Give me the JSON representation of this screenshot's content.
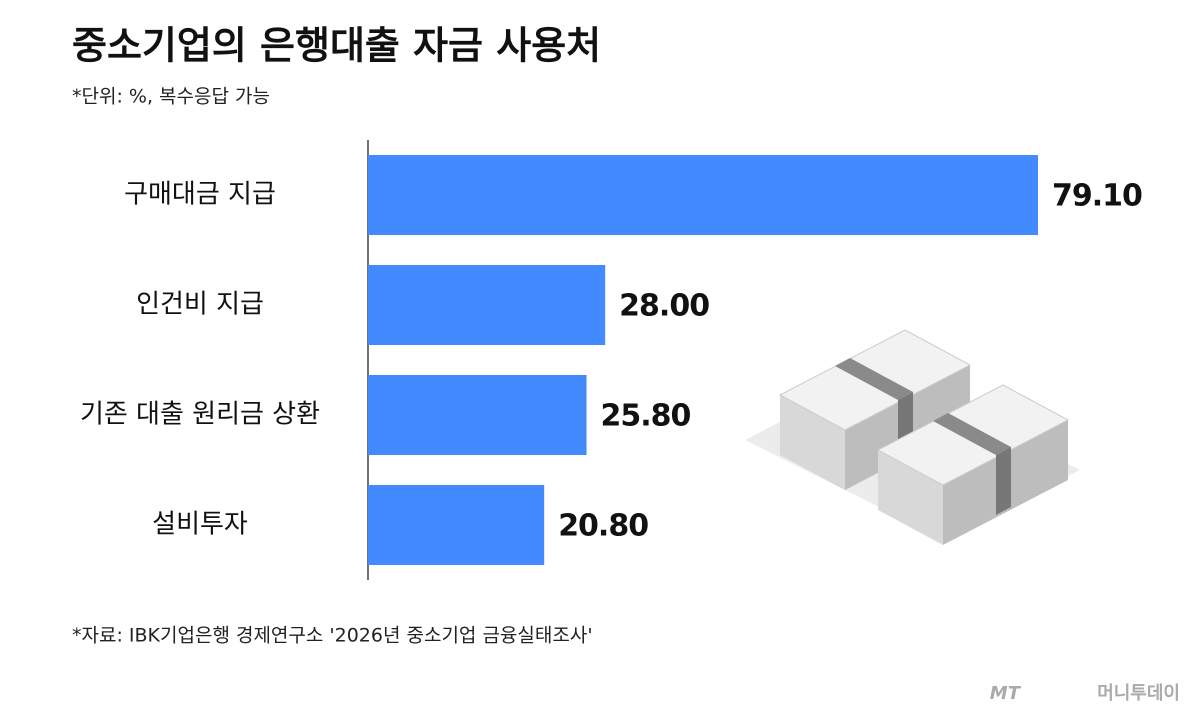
{
  "chart_data": {
    "type": "bar",
    "orientation": "horizontal",
    "title": "중소기업의 은행대출 자금 사용처",
    "subtitle": "*단위: %, 복수응답 가능",
    "categories": [
      "구매대금 지급",
      "인건비 지급",
      "기존 대출 원리금 상환",
      "설비투자"
    ],
    "values": [
      79.1,
      28.0,
      25.8,
      20.8
    ],
    "value_labels": [
      "79.10",
      "28.00",
      "25.80",
      "20.80"
    ],
    "color": "#448aff",
    "xlim": [
      0,
      85
    ],
    "source": "*자료: IBK기업은행 경제연구소 '2026년 중소기업 금융실태조사'",
    "logo_mark": "MT",
    "logo": "머니투데이"
  }
}
